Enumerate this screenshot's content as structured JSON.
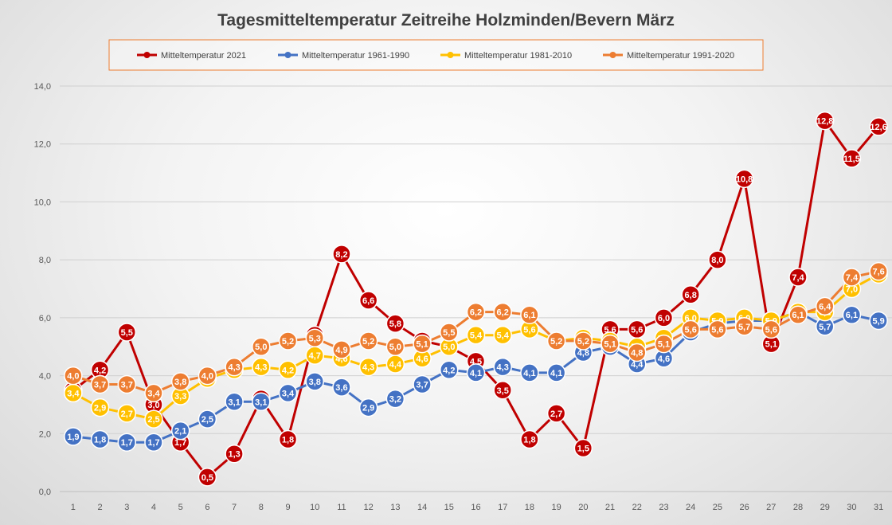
{
  "chart_data": {
    "type": "line",
    "title": "Tagesmitteltemperatur Zeitreihe Holzminden/Bevern März",
    "xlabel": "",
    "ylabel": "",
    "ylim": [
      0,
      14
    ],
    "yticks": [
      "0,0",
      "2,0",
      "4,0",
      "6,0",
      "8,0",
      "10,0",
      "12,0",
      "14,0"
    ],
    "grid": true,
    "legend_position": "top",
    "categories": [
      "1",
      "2",
      "3",
      "4",
      "5",
      "6",
      "7",
      "8",
      "9",
      "10",
      "11",
      "12",
      "13",
      "14",
      "15",
      "16",
      "17",
      "18",
      "19",
      "20",
      "21",
      "22",
      "23",
      "24",
      "25",
      "26",
      "27",
      "28",
      "29",
      "30",
      "31"
    ],
    "series": [
      {
        "name": "Mitteltemperatur 2021",
        "color": "#c00000",
        "values": [
          3.5,
          4.2,
          5.5,
          3.0,
          1.7,
          0.5,
          1.3,
          3.2,
          1.8,
          5.4,
          8.2,
          6.6,
          5.8,
          5.2,
          5.0,
          4.5,
          3.5,
          1.8,
          2.7,
          1.5,
          5.6,
          5.6,
          6.0,
          6.8,
          8.0,
          10.8,
          5.1,
          7.4,
          12.8,
          11.5,
          12.6
        ]
      },
      {
        "name": "Mitteltemperatur 1961-1990",
        "color": "#4472c4",
        "values": [
          1.9,
          1.8,
          1.7,
          1.7,
          2.1,
          2.5,
          3.1,
          3.1,
          3.4,
          3.8,
          3.6,
          2.9,
          3.2,
          3.7,
          4.2,
          4.1,
          4.3,
          4.1,
          4.1,
          4.8,
          5.0,
          4.4,
          4.6,
          5.5,
          5.8,
          5.9,
          5.9,
          6.2,
          5.7,
          6.1,
          5.9
        ]
      },
      {
        "name": "Mitteltemperatur 1981-2010",
        "color": "#ffc000",
        "values": [
          3.4,
          2.9,
          2.7,
          2.5,
          3.3,
          3.9,
          4.2,
          4.3,
          4.2,
          4.7,
          4.6,
          4.3,
          4.4,
          4.6,
          5.0,
          5.4,
          5.4,
          5.6,
          5.2,
          5.3,
          5.2,
          5.0,
          5.3,
          6.0,
          5.9,
          6.0,
          5.9,
          6.2,
          6.2,
          7.0,
          7.5
        ]
      },
      {
        "name": "Mitteltemperatur 1991-2020",
        "color": "#ed7d31",
        "values": [
          4.0,
          3.7,
          3.7,
          3.4,
          3.8,
          4.0,
          4.3,
          5.0,
          5.2,
          5.3,
          4.9,
          5.2,
          5.0,
          5.1,
          5.5,
          6.2,
          6.2,
          6.1,
          5.2,
          5.2,
          5.1,
          4.8,
          5.1,
          5.6,
          5.6,
          5.7,
          5.6,
          6.1,
          6.4,
          7.4,
          7.6
        ]
      }
    ]
  }
}
